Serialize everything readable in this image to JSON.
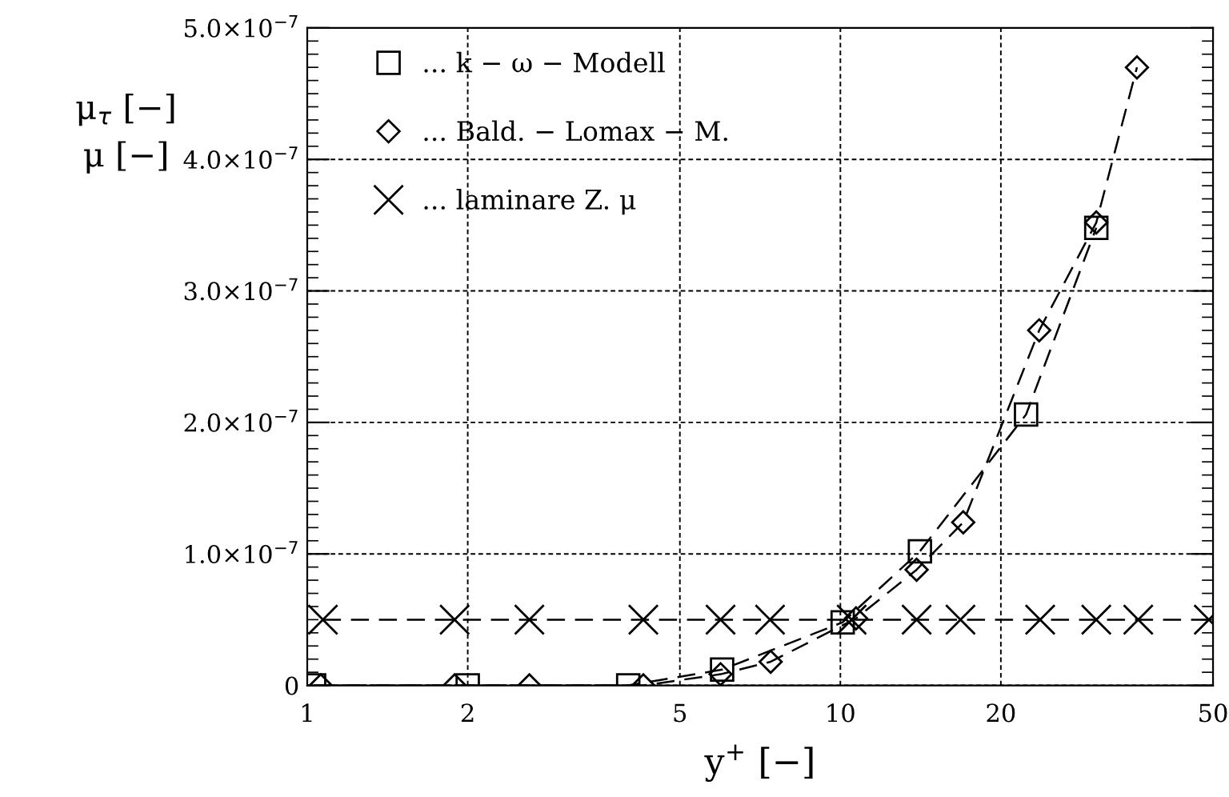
{
  "chart_data": {
    "type": "line",
    "xlabel": "y$^{+}$ [−]",
    "ylabel": "μ$_{τ}$ [−]\nμ [−]",
    "log": "x",
    "xlim": [
      1,
      50
    ],
    "xticks": [
      1,
      2,
      5,
      10,
      20,
      50
    ],
    "ylim": [
      0,
      5e-07
    ],
    "yticks": [
      {
        "value": 0,
        "label": "0"
      },
      {
        "value": 1e-07,
        "label": "1.0×10$^{−7}$"
      },
      {
        "value": 2e-07,
        "label": "2.0×10$^{−7}$"
      },
      {
        "value": 3e-07,
        "label": "3.0×10$^{−7}$"
      },
      {
        "value": 4e-07,
        "label": "4.0×10$^{−7}$"
      },
      {
        "value": 5e-07,
        "label": "5.0×10$^{−7}$"
      }
    ],
    "grid": true,
    "legend": "top left",
    "line_style": "dashed",
    "series": [
      {
        "name": "... k − ω − Modell",
        "color": "#000000",
        "marker": "square",
        "x": [
          1.03,
          2.0,
          4.0,
          6.0,
          10.1,
          14.1,
          22.3,
          30.2
        ],
        "values": [
          0,
          0,
          0,
          1.2e-08,
          4.8e-08,
          1.02e-07,
          2.06e-07,
          3.48e-07
        ]
      },
      {
        "name": "... Bald. − Lomax − M.",
        "color": "#000000",
        "marker": "diamond",
        "x": [
          1.06,
          1.89,
          2.61,
          4.27,
          5.96,
          7.4,
          10.7,
          13.9,
          17.0,
          23.6,
          30.2,
          36.0
        ],
        "values": [
          0,
          0,
          0,
          0,
          8.5e-09,
          1.8e-08,
          5.1e-08,
          8.8e-08,
          1.24e-07,
          2.7e-07,
          3.52e-07,
          4.7e-07
        ]
      },
      {
        "name": "... laminare Z. μ",
        "color": "#000000",
        "marker": "cross",
        "x": [
          1.07,
          1.89,
          2.61,
          4.27,
          5.96,
          7.38,
          10.5,
          13.9,
          16.8,
          23.7,
          30.2,
          36.2,
          49.1
        ],
        "values": [
          5e-08,
          5e-08,
          5e-08,
          5e-08,
          5e-08,
          5e-08,
          5e-08,
          5e-08,
          5e-08,
          5e-08,
          5e-08,
          5e-08,
          5e-08
        ]
      }
    ]
  }
}
